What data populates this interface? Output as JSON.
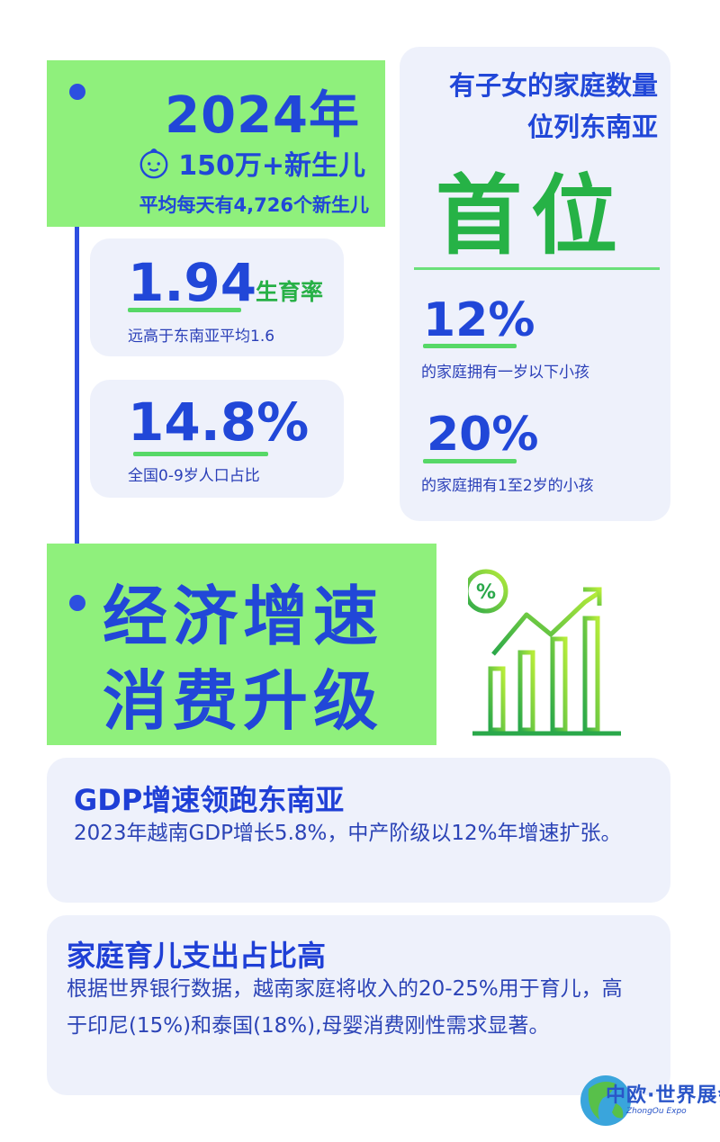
{
  "banner_2024": {
    "year": "2024年",
    "newborn": "150万+新生儿",
    "daily": "平均每天有4,726个新生儿",
    "icon": "baby-face-icon"
  },
  "fertility": {
    "value": "1.94",
    "label": "生育率",
    "note": "远高于东南亚平均1.6"
  },
  "population": {
    "value": "14.8%",
    "note": "全国0-9岁人口占比"
  },
  "household": {
    "line1": "有子女的家庭数量",
    "line2": "位列东南亚",
    "rank": "首位",
    "stat1_value": "12%",
    "stat1_note": "的家庭拥有一岁以下小孩",
    "stat2_value": "20%",
    "stat2_note": "的家庭拥有1至2岁的小孩"
  },
  "economy": {
    "line1": "经济增速",
    "line2": "消费升级",
    "icon": "percent-growth-chart-icon",
    "icon_symbol": "%"
  },
  "gdp": {
    "title": "GDP增速领跑东南亚",
    "body": "2023年越南GDP增长5.8%，中产阶级以12%年增速扩张。"
  },
  "childcare": {
    "title": "家庭育儿支出占比高",
    "body": "根据世界银行数据，越南家庭将收入的20-25%用于育儿，高于印尼(15%)和泰国(18%),母婴消费刚性需求显著。"
  },
  "logo": {
    "name": "中欧·世界展会",
    "sub": "ZhongOu Expo"
  },
  "colors": {
    "blue": "#2147d8",
    "green": "#27b046",
    "banner_green": "#8ff07c",
    "card_bg": "#eef1fb"
  }
}
